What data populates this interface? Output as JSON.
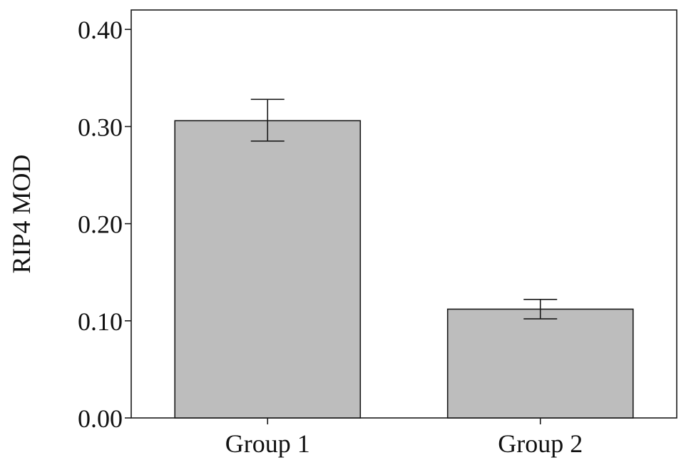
{
  "chart_data": {
    "type": "bar",
    "title": "",
    "xlabel": "",
    "ylabel": "RIP4 MOD",
    "categories": [
      "Group 1",
      "Group 2"
    ],
    "values": [
      0.306,
      0.112
    ],
    "error_low": [
      0.285,
      0.102
    ],
    "error_high": [
      0.328,
      0.122
    ],
    "ylim": [
      0,
      0.42
    ],
    "yticks": [
      0.0,
      0.1,
      0.2,
      0.3,
      0.4
    ],
    "ytick_labels": [
      "0.00",
      "0.10",
      "0.20",
      "0.30",
      "0.40"
    ],
    "grid": false,
    "legend": "none",
    "colors": {
      "bar_fill": "#bdbdbd",
      "bar_stroke": "#1a1a1a",
      "axis": "#1a1a1a",
      "error_bar": "#1a1a1a"
    }
  }
}
